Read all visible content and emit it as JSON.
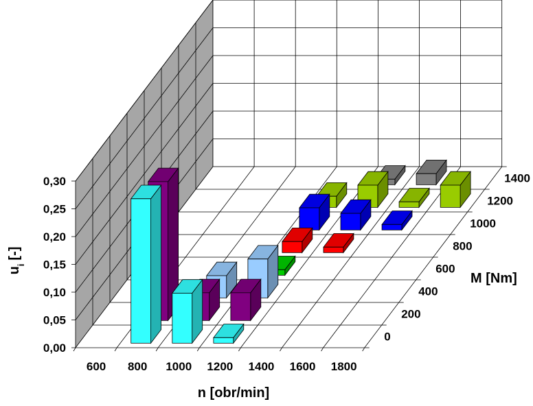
{
  "chart_data": {
    "type": "bar3d",
    "ylabel": "u_i [-]",
    "ylabel_main": "u",
    "ylabel_sub": "i",
    "ylabel_unit": "[-]",
    "xlabel": "n [obr/min]",
    "zlabel": "M [Nm]",
    "x_ticks": [
      "600",
      "800",
      "1000",
      "1200",
      "1400",
      "1600",
      "1800"
    ],
    "z_ticks": [
      "0",
      "200",
      "400",
      "600",
      "800",
      "1000",
      "1200",
      "1400"
    ],
    "y_ticks": [
      "0,00",
      "0,05",
      "0,10",
      "0,15",
      "0,20",
      "0,25",
      "0,30"
    ],
    "ylim": [
      0,
      0.3
    ],
    "grid": true,
    "series": [
      {
        "color": "#33FFFF",
        "points": [
          [
            800,
            0,
            0.26
          ],
          [
            1000,
            0,
            0.09
          ],
          [
            1200,
            0,
            0.01
          ]
        ]
      },
      {
        "color": "#800080",
        "points": [
          [
            800,
            200,
            0.25
          ],
          [
            1000,
            200,
            0.05
          ],
          [
            1200,
            200,
            0.05
          ]
        ]
      },
      {
        "color": "#99CCFF",
        "points": [
          [
            1000,
            400,
            0.04
          ],
          [
            1200,
            400,
            0.07
          ]
        ]
      },
      {
        "color": "#00CC00",
        "points": [
          [
            1200,
            600,
            0.01
          ]
        ]
      },
      {
        "color": "#FF0000",
        "points": [
          [
            1200,
            800,
            0.02
          ],
          [
            1400,
            800,
            0.01
          ]
        ]
      },
      {
        "color": "#0000FF",
        "points": [
          [
            1200,
            1000,
            0.04
          ],
          [
            1400,
            1000,
            0.03
          ],
          [
            1600,
            1000,
            0.01
          ]
        ]
      },
      {
        "color": "#99CC00",
        "points": [
          [
            1200,
            1200,
            0.02
          ],
          [
            1400,
            1200,
            0.04
          ],
          [
            1600,
            1200,
            0.01
          ],
          [
            1800,
            1200,
            0.04
          ]
        ]
      },
      {
        "color": "#808080",
        "points": [
          [
            1400,
            1400,
            0.01
          ],
          [
            1600,
            1400,
            0.02
          ]
        ]
      }
    ]
  }
}
